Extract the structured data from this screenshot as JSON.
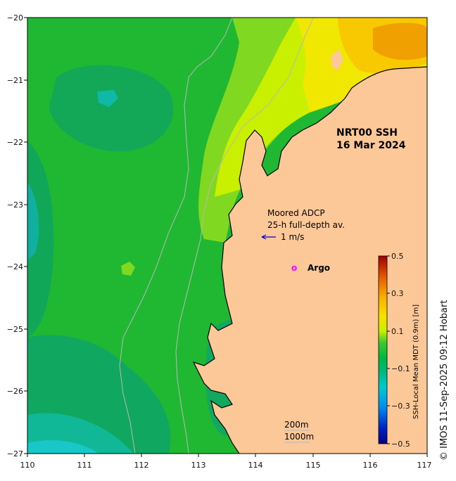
{
  "map": {
    "title": "NRT00 SSH",
    "date": "16 Mar 2024",
    "mooring_label_1": "Moored ADCP",
    "mooring_label_2": "25-h full-depth av.",
    "scale_vector_label": "1 m/s",
    "argo_marker": "o",
    "argo_label": "Argo",
    "isobath_1": "200m",
    "isobath_2": "1000m",
    "credit": "© IMOS 11-Sep-2025 09:12 Hobart",
    "land_color": "#fdc898",
    "vector_color": "#0000c8",
    "argo_color": "#ff00ff"
  },
  "axes": {
    "x_ticks": [
      "110",
      "111",
      "112",
      "113",
      "114",
      "115",
      "116",
      "117"
    ],
    "y_ticks": [
      "−20",
      "−21",
      "−22",
      "−23",
      "−24",
      "−25",
      "−26",
      "−27"
    ],
    "lon_range": [
      110,
      117
    ],
    "lat_range": [
      -27,
      -20
    ]
  },
  "colorbar": {
    "label": "SSH-Local Mean MDT (0.9m) [m]",
    "ticks": [
      "0.5",
      "0.3",
      "0.1",
      "−0.1",
      "−0.3",
      "−0.5"
    ],
    "range": [
      -0.5,
      0.5
    ],
    "colors": [
      "#000080",
      "#0030d0",
      "#0090f0",
      "#00c8d8",
      "#00b890",
      "#00b840",
      "#30c830",
      "#80d820",
      "#d8f000",
      "#f8e800",
      "#f8b800",
      "#f08000",
      "#d04000",
      "#a00000"
    ]
  }
}
